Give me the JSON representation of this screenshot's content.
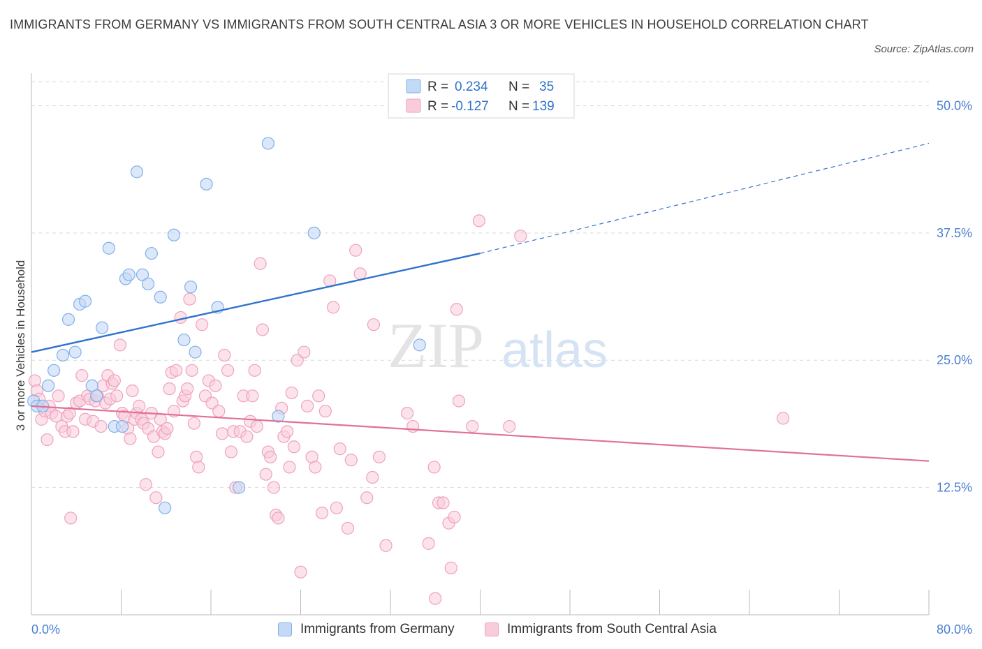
{
  "title": "IMMIGRANTS FROM GERMANY VS IMMIGRANTS FROM SOUTH CENTRAL ASIA 3 OR MORE VEHICLES IN HOUSEHOLD CORRELATION CHART",
  "source": "Source: ZipAtlas.com",
  "watermark": {
    "zip": "ZIP",
    "atlas": "atlas"
  },
  "stats_legend": [
    {
      "r_label": "R =",
      "r": "0.234",
      "n_label": "N =",
      "n": "35",
      "color": "#7eb0ea"
    },
    {
      "r_label": "R =",
      "r": "-0.127",
      "n_label": "N =",
      "n": "139",
      "color": "#f2a5bf"
    }
  ],
  "colors": {
    "blue_fill": "#c4d9f5",
    "blue_stroke": "#7eb0ea",
    "blue_line": "#2f73cc",
    "pink_fill": "#f9ccda",
    "pink_stroke": "#eea2bb",
    "pink_line": "#e0709a",
    "tick_label": "#4a7fd0",
    "grid": "#d9d9d9"
  },
  "chart_data": {
    "type": "scatter",
    "title": "IMMIGRANTS FROM GERMANY VS IMMIGRANTS FROM SOUTH CENTRAL ASIA 3 OR MORE VEHICLES IN HOUSEHOLD CORRELATION CHART",
    "xlabel": "",
    "ylabel": "3 or more Vehicles in Household",
    "xlim": [
      0,
      80
    ],
    "ylim": [
      0,
      52.5
    ],
    "x_tick_labels": [
      "0.0%",
      "80.0%"
    ],
    "y_ticks": [
      12.5,
      25.0,
      37.5,
      50.0
    ],
    "y_tick_labels": [
      "12.5%",
      "25.0%",
      "37.5%",
      "50.0%"
    ],
    "grid": true,
    "legend_position": "bottom-center",
    "series": [
      {
        "name": "Immigrants from Germany",
        "trend": {
          "x": [
            0,
            40
          ],
          "y": [
            25.8,
            35.5
          ],
          "dashed_to": [
            80,
            46.3
          ]
        },
        "points": [
          [
            0.2,
            21.0
          ],
          [
            0.5,
            20.5
          ],
          [
            1.0,
            20.5
          ],
          [
            1.5,
            22.5
          ],
          [
            2.0,
            24.0
          ],
          [
            2.8,
            25.5
          ],
          [
            3.3,
            29.0
          ],
          [
            3.9,
            25.8
          ],
          [
            4.3,
            30.5
          ],
          [
            4.8,
            30.8
          ],
          [
            5.4,
            22.5
          ],
          [
            5.8,
            21.5
          ],
          [
            6.3,
            28.2
          ],
          [
            6.9,
            36.0
          ],
          [
            7.4,
            18.5
          ],
          [
            8.1,
            18.5
          ],
          [
            8.4,
            33.0
          ],
          [
            8.7,
            33.4
          ],
          [
            9.4,
            43.5
          ],
          [
            9.9,
            33.4
          ],
          [
            10.4,
            32.5
          ],
          [
            10.7,
            35.5
          ],
          [
            11.5,
            31.2
          ],
          [
            11.9,
            10.5
          ],
          [
            12.7,
            37.3
          ],
          [
            13.6,
            27.0
          ],
          [
            14.2,
            32.2
          ],
          [
            14.6,
            25.8
          ],
          [
            15.6,
            42.3
          ],
          [
            16.6,
            30.2
          ],
          [
            18.5,
            12.5
          ],
          [
            21.1,
            46.3
          ],
          [
            22.0,
            19.5
          ],
          [
            25.2,
            37.5
          ],
          [
            34.6,
            26.5
          ]
        ]
      },
      {
        "name": "Immigrants from South Central Asia",
        "trend": {
          "x": [
            0,
            80
          ],
          "y": [
            20.5,
            15.1
          ]
        },
        "points": [
          [
            0.3,
            23.0
          ],
          [
            0.5,
            22.0
          ],
          [
            0.7,
            21.2
          ],
          [
            0.9,
            19.2
          ],
          [
            1.2,
            20.0
          ],
          [
            1.4,
            17.2
          ],
          [
            1.6,
            20.5
          ],
          [
            1.8,
            19.8
          ],
          [
            2.2,
            19.5
          ],
          [
            2.4,
            21.5
          ],
          [
            2.7,
            18.5
          ],
          [
            3.0,
            18.0
          ],
          [
            3.2,
            19.5
          ],
          [
            3.4,
            19.8
          ],
          [
            3.5,
            9.5
          ],
          [
            3.7,
            18.0
          ],
          [
            4.0,
            20.8
          ],
          [
            4.3,
            21.0
          ],
          [
            4.5,
            23.5
          ],
          [
            4.8,
            19.2
          ],
          [
            5.0,
            21.5
          ],
          [
            5.2,
            21.2
          ],
          [
            5.5,
            19.0
          ],
          [
            5.7,
            21.0
          ],
          [
            5.9,
            21.5
          ],
          [
            6.2,
            18.5
          ],
          [
            6.4,
            22.5
          ],
          [
            6.6,
            20.8
          ],
          [
            6.8,
            23.5
          ],
          [
            7.0,
            21.2
          ],
          [
            7.2,
            22.7
          ],
          [
            7.4,
            23.0
          ],
          [
            7.6,
            21.5
          ],
          [
            7.9,
            26.5
          ],
          [
            8.1,
            19.8
          ],
          [
            8.3,
            19.5
          ],
          [
            8.6,
            18.3
          ],
          [
            8.8,
            17.3
          ],
          [
            9.0,
            22.0
          ],
          [
            9.2,
            19.2
          ],
          [
            9.4,
            19.8
          ],
          [
            9.6,
            20.5
          ],
          [
            9.8,
            19.2
          ],
          [
            10.0,
            18.8
          ],
          [
            10.2,
            12.8
          ],
          [
            10.4,
            18.3
          ],
          [
            10.7,
            19.8
          ],
          [
            10.9,
            17.5
          ],
          [
            11.1,
            11.5
          ],
          [
            11.3,
            16.0
          ],
          [
            11.5,
            19.2
          ],
          [
            11.7,
            18.0
          ],
          [
            11.9,
            17.8
          ],
          [
            12.1,
            18.3
          ],
          [
            12.3,
            22.2
          ],
          [
            12.5,
            23.8
          ],
          [
            12.7,
            20.0
          ],
          [
            12.9,
            24.0
          ],
          [
            13.3,
            29.2
          ],
          [
            13.5,
            21.0
          ],
          [
            13.7,
            21.5
          ],
          [
            13.9,
            22.2
          ],
          [
            14.1,
            31.0
          ],
          [
            14.3,
            24.0
          ],
          [
            14.5,
            18.8
          ],
          [
            14.7,
            15.5
          ],
          [
            14.9,
            14.5
          ],
          [
            15.2,
            28.5
          ],
          [
            15.5,
            21.5
          ],
          [
            15.8,
            23.0
          ],
          [
            16.1,
            20.8
          ],
          [
            16.4,
            22.5
          ],
          [
            16.7,
            20.0
          ],
          [
            17.0,
            17.8
          ],
          [
            17.2,
            25.5
          ],
          [
            17.5,
            24.0
          ],
          [
            17.8,
            16.0
          ],
          [
            18.0,
            18.0
          ],
          [
            18.2,
            12.5
          ],
          [
            18.6,
            18.0
          ],
          [
            18.9,
            21.5
          ],
          [
            19.2,
            17.5
          ],
          [
            19.5,
            19.0
          ],
          [
            19.7,
            21.5
          ],
          [
            19.9,
            24.0
          ],
          [
            20.1,
            18.5
          ],
          [
            20.4,
            34.5
          ],
          [
            20.6,
            28.0
          ],
          [
            20.9,
            13.8
          ],
          [
            21.1,
            16.0
          ],
          [
            21.3,
            15.5
          ],
          [
            21.6,
            12.5
          ],
          [
            21.8,
            9.8
          ],
          [
            22.0,
            9.5
          ],
          [
            22.3,
            20.3
          ],
          [
            22.5,
            17.5
          ],
          [
            22.8,
            18.0
          ],
          [
            23.0,
            14.5
          ],
          [
            23.2,
            21.8
          ],
          [
            23.4,
            16.5
          ],
          [
            23.7,
            25.0
          ],
          [
            24.0,
            4.2
          ],
          [
            24.3,
            25.8
          ],
          [
            24.6,
            20.5
          ],
          [
            25.0,
            15.5
          ],
          [
            25.3,
            14.5
          ],
          [
            25.6,
            21.5
          ],
          [
            25.9,
            10.0
          ],
          [
            26.2,
            20.0
          ],
          [
            26.6,
            32.8
          ],
          [
            26.9,
            30.2
          ],
          [
            27.2,
            10.5
          ],
          [
            27.5,
            16.3
          ],
          [
            28.2,
            8.5
          ],
          [
            28.5,
            15.2
          ],
          [
            28.9,
            35.8
          ],
          [
            29.3,
            33.5
          ],
          [
            29.9,
            11.5
          ],
          [
            30.4,
            13.5
          ],
          [
            31.0,
            15.5
          ],
          [
            31.6,
            6.8
          ],
          [
            33.5,
            19.8
          ],
          [
            34.0,
            18.5
          ],
          [
            35.4,
            7.0
          ],
          [
            35.9,
            14.5
          ],
          [
            36.0,
            1.6
          ],
          [
            36.3,
            11.0
          ],
          [
            36.7,
            11.0
          ],
          [
            37.2,
            9.0
          ],
          [
            37.4,
            4.6
          ],
          [
            37.7,
            9.6
          ],
          [
            37.9,
            30.0
          ],
          [
            38.1,
            21.0
          ],
          [
            39.3,
            18.5
          ],
          [
            39.9,
            38.7
          ],
          [
            42.6,
            18.5
          ],
          [
            43.6,
            37.2
          ],
          [
            67.0,
            19.3
          ],
          [
            30.5,
            28.5
          ]
        ]
      }
    ]
  }
}
